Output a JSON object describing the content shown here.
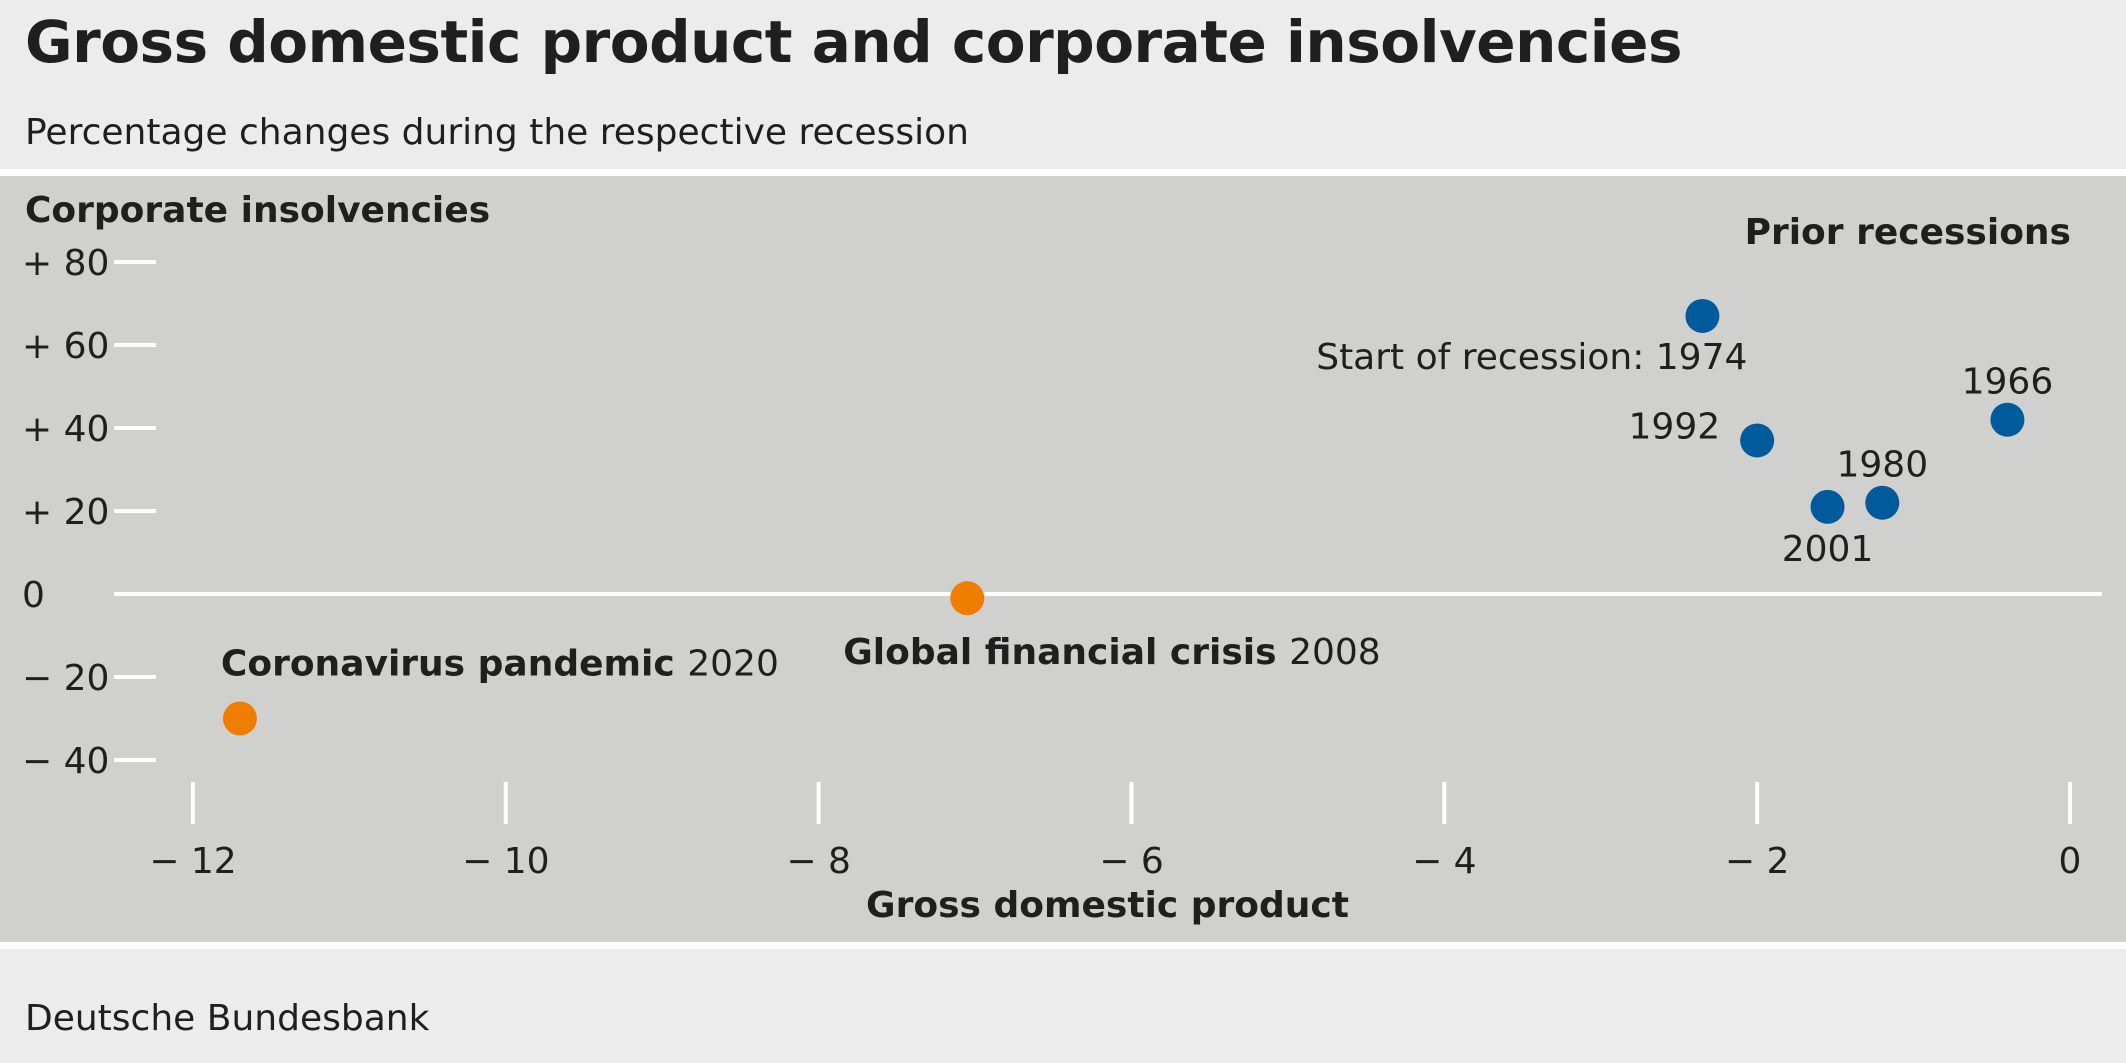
{
  "header": {
    "title": "Gross domestic product and corporate insolvencies",
    "subtitle": "Percentage changes during the respective recession"
  },
  "footer": {
    "source": "Deutsche Bundesbank"
  },
  "colors": {
    "panel": "#d0d0ce",
    "prior": "#005a9c",
    "highlight": "#ef7d00",
    "axis": "#ffffff"
  },
  "chart_data": {
    "type": "scatter",
    "xlabel": "Gross domestic product",
    "ylabel": "Corporate insolvencies",
    "xlim": [
      -12,
      0
    ],
    "ylim": [
      -40,
      80
    ],
    "x_ticks": [
      {
        "value": -12,
        "label": "− 12"
      },
      {
        "value": -10,
        "label": "− 10"
      },
      {
        "value": -8,
        "label": "− 8"
      },
      {
        "value": -6,
        "label": "− 6"
      },
      {
        "value": -4,
        "label": "− 4"
      },
      {
        "value": -2,
        "label": "− 2"
      },
      {
        "value": 0,
        "label": "0"
      }
    ],
    "y_ticks": [
      {
        "value": 80,
        "label": "+ 80"
      },
      {
        "value": 60,
        "label": "+ 60"
      },
      {
        "value": 40,
        "label": "+ 40"
      },
      {
        "value": 20,
        "label": "+ 20"
      },
      {
        "value": 0,
        "label": "0"
      },
      {
        "value": -20,
        "label": "− 20"
      },
      {
        "value": -40,
        "label": "− 40"
      }
    ],
    "legend_label": "Prior recessions",
    "series": [
      {
        "name": "Prior recessions",
        "color": "#005a9c",
        "points": [
          {
            "x": -2.35,
            "y": 67,
            "label": "Start of recession: 1974",
            "anchor": "end",
            "place": "below-left"
          },
          {
            "x": -2.0,
            "y": 37,
            "label": "1992",
            "anchor": "end",
            "place": "left"
          },
          {
            "x": -1.55,
            "y": 21,
            "label": "2001",
            "anchor": "middle",
            "place": "below"
          },
          {
            "x": -1.2,
            "y": 22,
            "label": "1980",
            "anchor": "middle",
            "place": "above"
          },
          {
            "x": -0.4,
            "y": 42,
            "label": "1966",
            "anchor": "middle",
            "place": "above"
          }
        ]
      },
      {
        "color": "#ef7d00",
        "points": [
          {
            "x": -7.05,
            "y": -1,
            "label_bold": "Global financial crisis",
            "label_year": "2008",
            "place": "below"
          },
          {
            "x": -11.7,
            "y": -30,
            "label_bold": "Coronavirus pandemic",
            "label_year": "2020",
            "place": "above"
          }
        ]
      }
    ]
  }
}
